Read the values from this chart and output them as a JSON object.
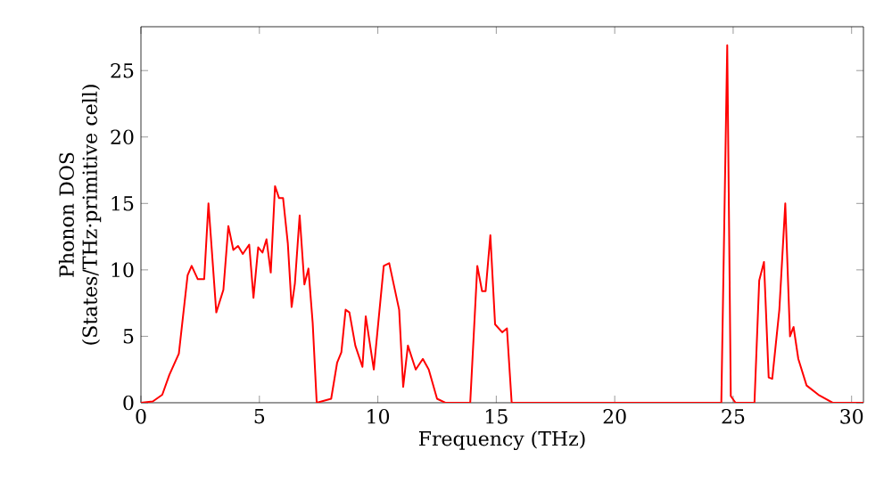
{
  "chart_data": {
    "type": "line",
    "xlabel": "Frequency (THz)",
    "ylabel": "Phonon DOS\n(States/THz·primitive cell)",
    "xlim": [
      0,
      30.5
    ],
    "ylim": [
      0,
      28.3
    ],
    "xticks": [
      0,
      5,
      10,
      15,
      20,
      25,
      30
    ],
    "yticks": [
      0,
      5,
      10,
      15,
      20,
      25
    ],
    "marker": "none",
    "line_style": "solid",
    "series": [
      {
        "color": "#ff0000",
        "x": [
          0,
          0.5,
          0.9,
          1.2,
          1.6,
          1.97,
          2.14,
          2.4,
          2.67,
          2.85,
          3.18,
          3.48,
          3.69,
          3.9,
          4.1,
          4.3,
          4.57,
          4.75,
          4.95,
          5.13,
          5.3,
          5.48,
          5.66,
          5.83,
          6.0,
          6.2,
          6.36,
          6.5,
          6.7,
          6.9,
          7.07,
          7.25,
          7.42,
          8.03,
          8.28,
          8.46,
          8.64,
          8.8,
          9.05,
          9.35,
          9.49,
          9.83,
          10.25,
          10.48,
          10.9,
          11.07,
          11.27,
          11.6,
          11.9,
          12.15,
          12.5,
          12.85,
          13.9,
          14.2,
          14.4,
          14.55,
          14.75,
          14.95,
          15.25,
          15.45,
          15.65,
          24.5,
          24.75,
          24.9,
          25.1,
          25.9,
          26.1,
          26.3,
          26.5,
          26.65,
          26.95,
          27.2,
          27.4,
          27.55,
          27.75,
          28.1,
          28.6,
          29.2,
          30.5
        ],
        "values": [
          0,
          0.1,
          0.6,
          2.1,
          3.7,
          9.6,
          10.3,
          9.3,
          9.3,
          15,
          6.8,
          8.5,
          13.3,
          11.5,
          11.8,
          11.2,
          11.9,
          7.9,
          11.7,
          11.3,
          12.3,
          9.8,
          16.3,
          15.4,
          15.4,
          12,
          7.2,
          9,
          14.1,
          8.9,
          10.1,
          6,
          0,
          0.3,
          3,
          3.8,
          7,
          6.8,
          4.3,
          2.7,
          6.5,
          2.5,
          10.3,
          10.5,
          7,
          1.2,
          4.3,
          2.5,
          3.3,
          2.5,
          0.3,
          0,
          0,
          10.3,
          8.4,
          8.4,
          12.6,
          5.9,
          5.3,
          5.6,
          0,
          0,
          26.9,
          0.5,
          0,
          0,
          9.2,
          10.6,
          1.9,
          1.8,
          7,
          15,
          5,
          5.7,
          3.3,
          1.3,
          0.6,
          0,
          0
        ]
      }
    ]
  }
}
